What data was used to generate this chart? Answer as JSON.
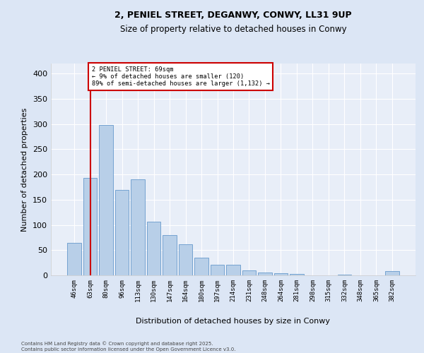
{
  "title1": "2, PENIEL STREET, DEGANWY, CONWY, LL31 9UP",
  "title2": "Size of property relative to detached houses in Conwy",
  "xlabel": "Distribution of detached houses by size in Conwy",
  "ylabel": "Number of detached properties",
  "bar_labels": [
    "46sqm",
    "63sqm",
    "80sqm",
    "96sqm",
    "113sqm",
    "130sqm",
    "147sqm",
    "164sqm",
    "180sqm",
    "197sqm",
    "214sqm",
    "231sqm",
    "248sqm",
    "264sqm",
    "281sqm",
    "298sqm",
    "315sqm",
    "332sqm",
    "348sqm",
    "365sqm",
    "382sqm"
  ],
  "bar_values": [
    65,
    193,
    298,
    170,
    190,
    107,
    80,
    62,
    35,
    21,
    21,
    10,
    6,
    4,
    3,
    0,
    0,
    1,
    0,
    0,
    8
  ],
  "bar_color": "#b8cfe8",
  "bar_edge_color": "#6699cc",
  "vline_x": 1.0,
  "vline_color": "#cc0000",
  "annotation_text": "2 PENIEL STREET: 69sqm\n← 9% of detached houses are smaller (120)\n89% of semi-detached houses are larger (1,132) →",
  "ylim": [
    0,
    420
  ],
  "yticks": [
    0,
    50,
    100,
    150,
    200,
    250,
    300,
    350,
    400
  ],
  "bg_color": "#dce6f5",
  "plot_bg_color": "#e8eef8",
  "footer1": "Contains HM Land Registry data © Crown copyright and database right 2025.",
  "footer2": "Contains public sector information licensed under the Open Government Licence v3.0."
}
